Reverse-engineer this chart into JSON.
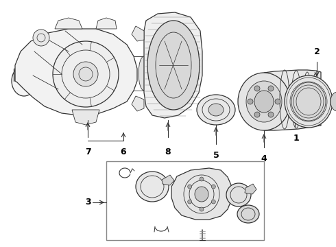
{
  "bg_color": "#ffffff",
  "lc": "#333333",
  "lc2": "#666666",
  "label_color": "#000000",
  "fig_w": 4.9,
  "fig_h": 3.6,
  "dpi": 100
}
